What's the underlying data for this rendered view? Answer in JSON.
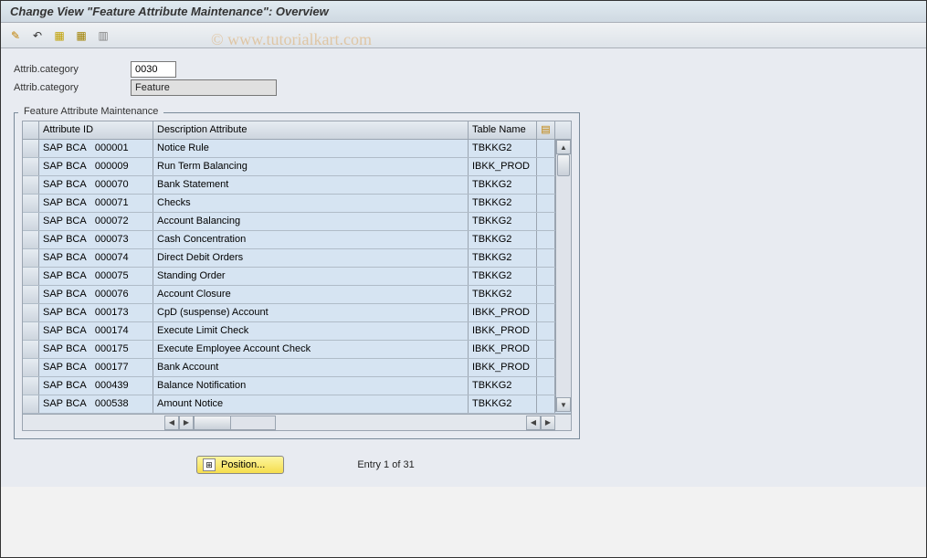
{
  "window": {
    "title": "Change View \"Feature Attribute Maintenance\": Overview"
  },
  "watermark": "© www.tutorialkart.com",
  "toolbar": {
    "icons": [
      {
        "name": "toggle-icon",
        "glyph": "⚙",
        "color": "#c08000"
      },
      {
        "name": "undo-icon",
        "glyph": "↩",
        "color": "#333"
      },
      {
        "name": "select-all-icon",
        "glyph": "▦",
        "color": "#c0a000"
      },
      {
        "name": "save-icon",
        "glyph": "▦",
        "color": "#a08000"
      },
      {
        "name": "deselect-icon",
        "glyph": "▥",
        "color": "#808080"
      }
    ]
  },
  "form": {
    "attrib_category_label": "Attrib.category",
    "attrib_category_code": "0030",
    "attrib_category_text_label": "Attrib.category",
    "attrib_category_text": "Feature"
  },
  "panel": {
    "title": "Feature Attribute Maintenance",
    "columns": {
      "attribute_id": "Attribute ID",
      "description": "Description Attribute",
      "table_name": "Table Name",
      "config_icon": "▤"
    },
    "rows": [
      {
        "id": "SAP BCA   000001",
        "desc": "Notice Rule",
        "tbl": "TBKKG2"
      },
      {
        "id": "SAP BCA   000009",
        "desc": "Run Term Balancing",
        "tbl": "IBKK_PROD"
      },
      {
        "id": "SAP BCA   000070",
        "desc": "Bank Statement",
        "tbl": "TBKKG2"
      },
      {
        "id": "SAP BCA   000071",
        "desc": "Checks",
        "tbl": "TBKKG2"
      },
      {
        "id": "SAP BCA   000072",
        "desc": "Account Balancing",
        "tbl": "TBKKG2"
      },
      {
        "id": "SAP BCA   000073",
        "desc": "Cash Concentration",
        "tbl": "TBKKG2"
      },
      {
        "id": "SAP BCA   000074",
        "desc": "Direct Debit Orders",
        "tbl": "TBKKG2"
      },
      {
        "id": "SAP BCA   000075",
        "desc": "Standing Order",
        "tbl": "TBKKG2"
      },
      {
        "id": "SAP BCA   000076",
        "desc": "Account Closure",
        "tbl": "TBKKG2"
      },
      {
        "id": "SAP BCA   000173",
        "desc": "CpD (suspense) Account",
        "tbl": "IBKK_PROD"
      },
      {
        "id": "SAP BCA   000174",
        "desc": "Execute Limit Check",
        "tbl": "IBKK_PROD"
      },
      {
        "id": "SAP BCA   000175",
        "desc": "Execute Employee Account Check",
        "tbl": "IBKK_PROD"
      },
      {
        "id": "SAP BCA   000177",
        "desc": "Bank Account",
        "tbl": "IBKK_PROD"
      },
      {
        "id": "SAP BCA   000439",
        "desc": "Balance Notification",
        "tbl": "TBKKG2"
      },
      {
        "id": "SAP BCA   000538",
        "desc": "Amount Notice",
        "tbl": "TBKKG2"
      }
    ]
  },
  "footer": {
    "position_label": "Position...",
    "entry_text": "Entry 1 of 31"
  },
  "colors": {
    "row_bg": "#d6e4f2",
    "header_grad_top": "#e6ecf2",
    "header_grad_bot": "#cdd5de",
    "border": "#9aa4b0",
    "panel_bg": "#e8ebf1"
  }
}
